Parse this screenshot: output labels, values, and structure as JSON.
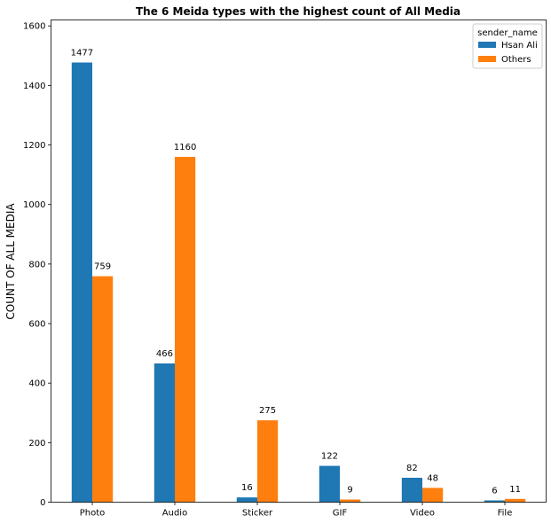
{
  "chart_data": {
    "type": "bar",
    "title": "The 6 Meida types with the highest count of All Media",
    "xlabel": "",
    "ylabel": "COUNT OF ALL MEDIA",
    "categories": [
      "Photo",
      "Audio",
      "Sticker",
      "GIF",
      "Video",
      "File"
    ],
    "series": [
      {
        "name": "Hsan Ali",
        "values": [
          1477,
          466,
          16,
          122,
          82,
          6
        ],
        "color": "#1f77b4"
      },
      {
        "name": "Others",
        "values": [
          759,
          1160,
          275,
          9,
          48,
          11
        ],
        "color": "#ff7f0e"
      }
    ],
    "ylim": [
      0,
      1620
    ],
    "yticks": [
      0,
      200,
      400,
      600,
      800,
      1000,
      1200,
      1400,
      1600
    ],
    "grid": false,
    "legend": {
      "title": "sender_name",
      "placement": "top-right"
    }
  }
}
